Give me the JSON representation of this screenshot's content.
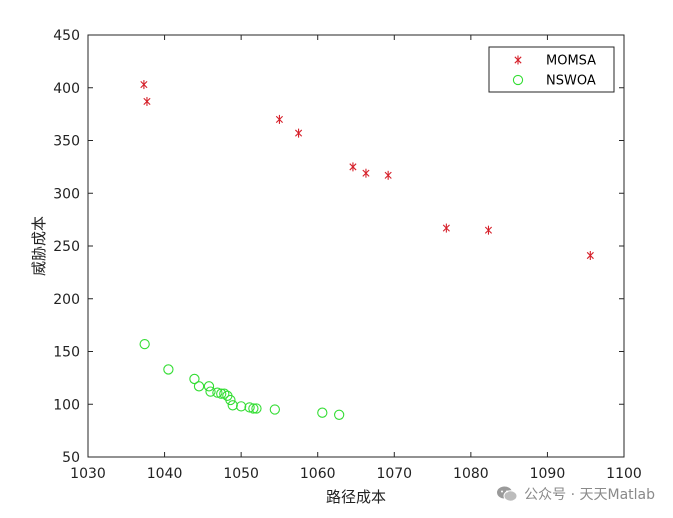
{
  "chart_data": {
    "type": "scatter",
    "title": "",
    "xlabel": "路径成本",
    "ylabel": "威胁成本",
    "xlim": [
      1030,
      1100
    ],
    "ylim": [
      50,
      450
    ],
    "xticks": [
      1030,
      1040,
      1050,
      1060,
      1070,
      1080,
      1090,
      1100
    ],
    "yticks": [
      50,
      100,
      150,
      200,
      250,
      300,
      350,
      400,
      450
    ],
    "grid": false,
    "legend_position": "top-right",
    "series": [
      {
        "name": "MOMSA",
        "marker": "asterisk",
        "color": "#d6202a",
        "x": [
          1037.3,
          1037.7,
          1055.0,
          1057.5,
          1064.6,
          1066.3,
          1069.2,
          1076.8,
          1082.3,
          1095.6
        ],
        "y": [
          403,
          387,
          370,
          357,
          325,
          319,
          317,
          267,
          265,
          241
        ]
      },
      {
        "name": "NSWOA",
        "marker": "circle",
        "color": "#33dd33",
        "x": [
          1037.4,
          1040.5,
          1043.9,
          1044.5,
          1045.8,
          1046.0,
          1046.9,
          1047.4,
          1047.8,
          1048.2,
          1048.6,
          1048.9,
          1050.0,
          1051.1,
          1051.6,
          1052.0,
          1054.4,
          1060.6,
          1062.8
        ],
        "y": [
          157,
          133,
          124,
          117,
          117,
          112,
          111,
          110,
          110,
          108,
          104,
          99,
          98,
          97,
          96,
          96,
          95,
          92,
          90
        ]
      }
    ]
  },
  "watermark": {
    "text": "公众号 · 天天Matlab"
  }
}
